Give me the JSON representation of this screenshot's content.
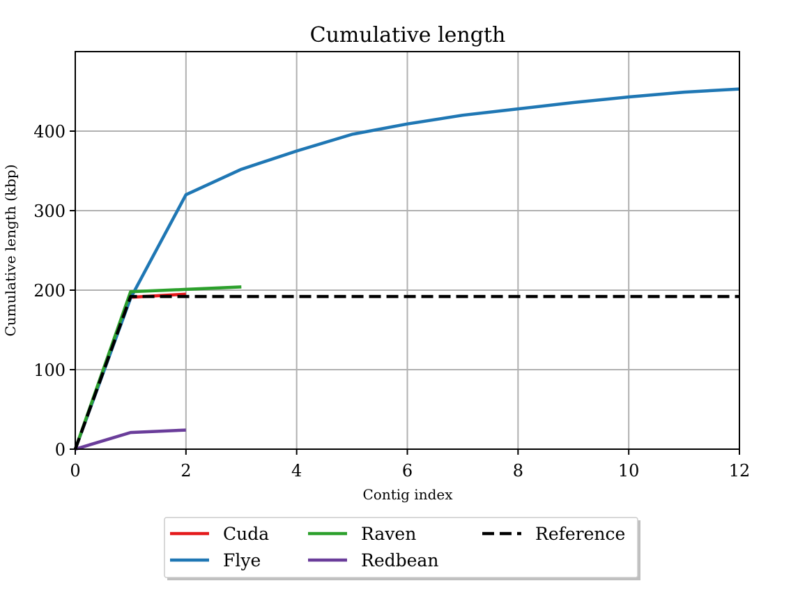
{
  "chart_data": {
    "type": "line",
    "title": "Cumulative length",
    "xlabel": "Contig index",
    "ylabel": "Cumulative length (kbp)",
    "xlim": [
      0,
      12
    ],
    "ylim": [
      0,
      500
    ],
    "xticks": [
      0,
      2,
      4,
      6,
      8,
      10,
      12
    ],
    "yticks": [
      0,
      100,
      200,
      300,
      400
    ],
    "grid": true,
    "legend_position": "bottom-center",
    "series": [
      {
        "name": "Cuda",
        "color": "#e41a1c",
        "dash": false,
        "x": [
          0,
          1,
          2
        ],
        "y": [
          0,
          191,
          195
        ]
      },
      {
        "name": "Flye",
        "color": "#1f77b4",
        "dash": false,
        "x": [
          0,
          1,
          2,
          3,
          4,
          5,
          6,
          7,
          8,
          9,
          10,
          11,
          12
        ],
        "y": [
          0,
          190,
          320,
          352,
          375,
          396,
          409,
          420,
          428,
          436,
          443,
          449,
          453
        ]
      },
      {
        "name": "Raven",
        "color": "#2ca02c",
        "dash": false,
        "x": [
          0,
          1,
          2,
          3
        ],
        "y": [
          0,
          198,
          201,
          204
        ]
      },
      {
        "name": "Redbean",
        "color": "#6a3d9a",
        "dash": false,
        "x": [
          0,
          1,
          2
        ],
        "y": [
          0,
          21,
          24
        ]
      },
      {
        "name": "Reference",
        "color": "#000000",
        "dash": true,
        "x": [
          0,
          1,
          2,
          3,
          4,
          5,
          6,
          7,
          8,
          9,
          10,
          11,
          12
        ],
        "y": [
          0,
          192,
          192,
          192,
          192,
          192,
          192,
          192,
          192,
          192,
          192,
          192,
          192
        ]
      }
    ]
  }
}
